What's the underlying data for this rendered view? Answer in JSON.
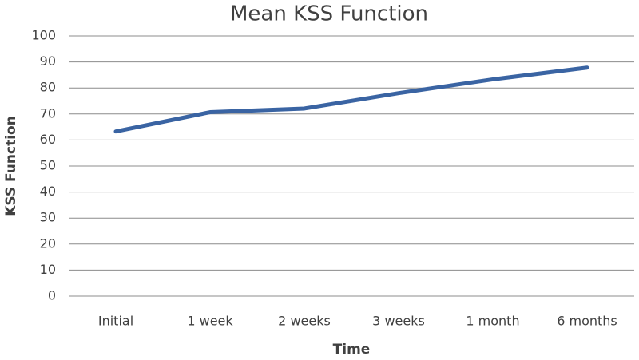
{
  "chart_data": {
    "type": "line",
    "title": "Mean KSS Function",
    "x_label": "Time",
    "y_label": "KSS Function",
    "categories": [
      "Initial",
      "1 week",
      "2 weeks",
      "3 weeks",
      "1 month",
      "6 months"
    ],
    "series": [
      {
        "name": "Mean KSS Function",
        "color": "#3a64a3",
        "values": [
          63.3,
          70.7,
          72.1,
          78,
          83.3,
          87.8
        ]
      }
    ],
    "ylim": [
      0,
      100
    ],
    "yticks": [
      0,
      10,
      20,
      30,
      40,
      50,
      60,
      70,
      80,
      90,
      100
    ],
    "grid": true
  }
}
